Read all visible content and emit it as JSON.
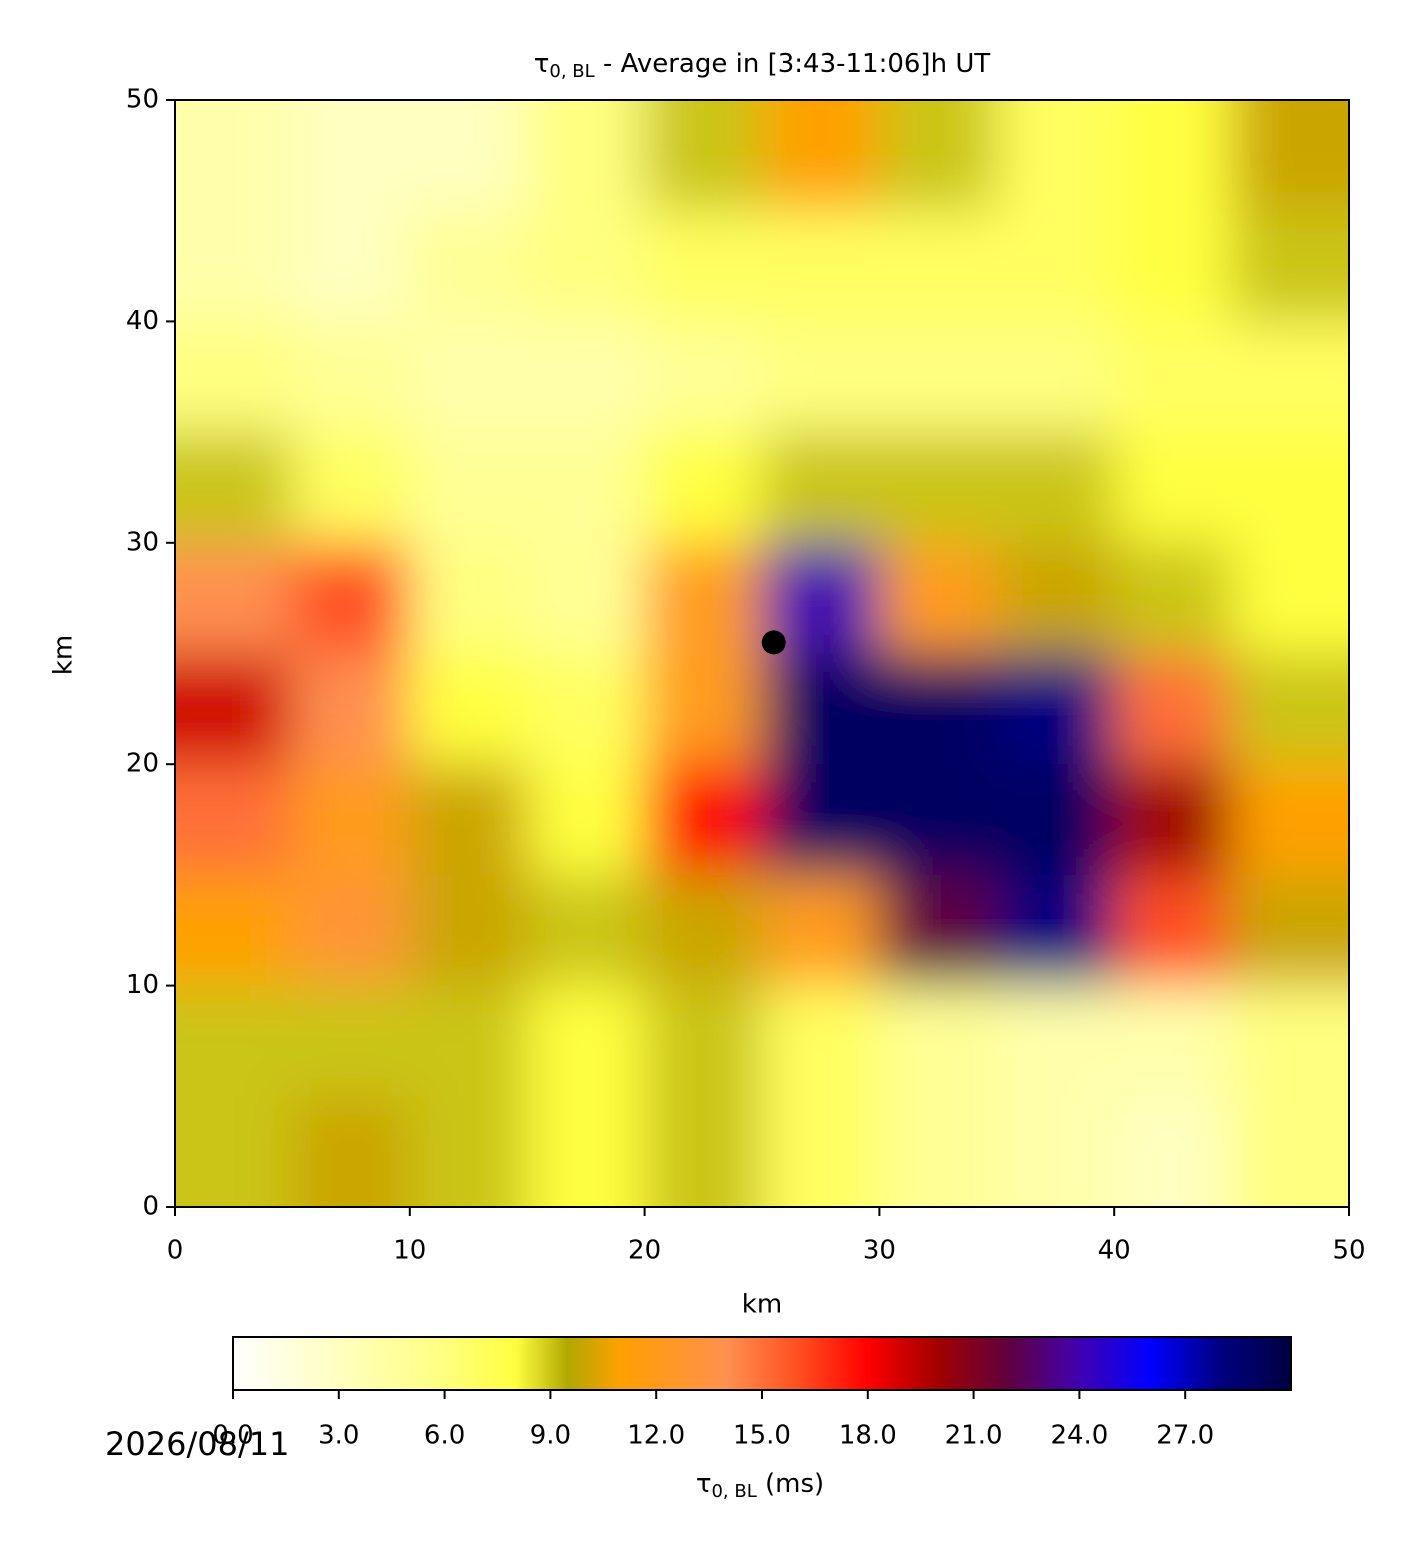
{
  "chart_data": {
    "type": "heatmap",
    "title": {
      "symbol": "τ",
      "subscript": "0, BL",
      "text": " - Average in [3:43-11:06]h UT"
    },
    "x_label": "km",
    "y_label": "km",
    "x": [
      2.5,
      7.5,
      12.5,
      17.5,
      22.5,
      27.5,
      32.5,
      37.5,
      42.5,
      47.5
    ],
    "y": [
      47.5,
      42.5,
      37.5,
      32.5,
      27.5,
      22.5,
      17.5,
      12.5,
      7.5,
      2.5
    ],
    "z": [
      [
        4,
        3,
        3,
        6,
        9,
        11,
        9,
        7,
        8,
        10
      ],
      [
        4,
        3,
        5,
        6,
        7,
        7,
        7,
        7,
        8,
        9
      ],
      [
        6,
        5,
        4,
        4,
        5,
        6,
        6,
        6,
        7,
        7
      ],
      [
        9,
        7,
        5,
        5,
        8,
        9,
        9,
        9,
        8,
        8
      ],
      [
        14,
        16,
        6,
        5,
        12,
        24,
        12,
        10,
        9,
        8
      ],
      [
        19,
        14,
        8,
        7,
        12,
        29,
        29,
        28,
        15,
        9
      ],
      [
        15,
        12,
        10,
        8,
        18,
        29,
        29,
        29,
        20,
        11
      ],
      [
        11,
        13,
        10,
        9,
        10,
        12,
        22,
        28,
        16,
        10
      ],
      [
        9,
        9,
        9,
        8,
        9,
        7,
        5,
        4,
        4,
        6
      ],
      [
        9,
        10,
        9,
        8,
        9,
        7,
        5,
        4,
        3,
        6
      ]
    ],
    "marker": {
      "x": 25.5,
      "y": 25.5,
      "color": "#000000"
    },
    "xlim": [
      0,
      50
    ],
    "ylim": [
      0,
      50
    ],
    "xticks": [
      0,
      10,
      20,
      30,
      40,
      50
    ],
    "yticks": [
      0,
      10,
      20,
      30,
      40,
      50
    ],
    "colorbar": {
      "lim": [
        0,
        30
      ],
      "ticks": [
        {
          "value": 0,
          "label": "0.0"
        },
        {
          "value": 3,
          "label": "3.0"
        },
        {
          "value": 6,
          "label": "6.0"
        },
        {
          "value": 9,
          "label": "9.0"
        },
        {
          "value": 12,
          "label": "12.0"
        },
        {
          "value": 15,
          "label": "15.0"
        },
        {
          "value": 18,
          "label": "18.0"
        },
        {
          "value": 21,
          "label": "21.0"
        },
        {
          "value": 24,
          "label": "24.0"
        },
        {
          "value": 27,
          "label": "27.0"
        }
      ],
      "label": {
        "symbol": "τ",
        "subscript": "0, BL",
        "text": " (ms)"
      },
      "colormap": [
        {
          "value": 0,
          "color": "#ffffff"
        },
        {
          "value": 3,
          "color": "#ffffc0"
        },
        {
          "value": 6,
          "color": "#ffff80"
        },
        {
          "value": 8,
          "color": "#ffff40"
        },
        {
          "value": 9.5,
          "color": "#b0a800"
        },
        {
          "value": 11,
          "color": "#ffa000"
        },
        {
          "value": 14,
          "color": "#ff9050"
        },
        {
          "value": 16,
          "color": "#ff5020"
        },
        {
          "value": 18,
          "color": "#ff0000"
        },
        {
          "value": 20,
          "color": "#a00000"
        },
        {
          "value": 22,
          "color": "#600040"
        },
        {
          "value": 24,
          "color": "#4000b0"
        },
        {
          "value": 26,
          "color": "#0000ff"
        },
        {
          "value": 28,
          "color": "#000080"
        },
        {
          "value": 30,
          "color": "#000040"
        }
      ]
    },
    "date": "2026/08/11"
  }
}
